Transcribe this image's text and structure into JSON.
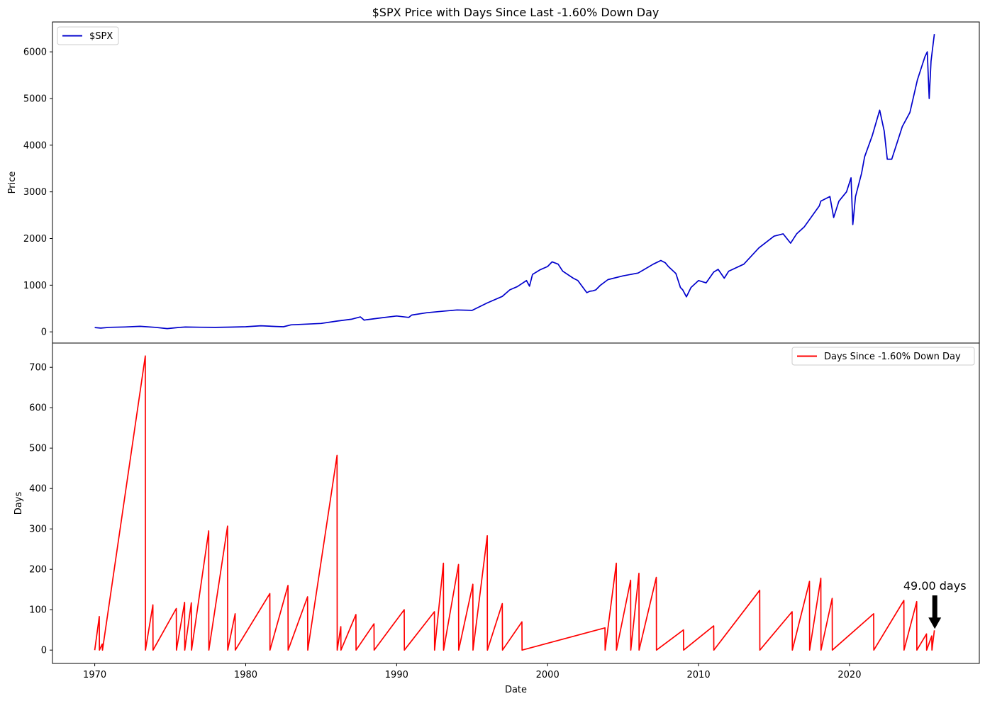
{
  "figure": {
    "title": "$SPX Price with Days Since Last -1.60% Down Day"
  },
  "chart_data": [
    {
      "type": "line",
      "ylabel": "Price",
      "xlabel": "",
      "xlim": [
        1967.2,
        2028.6
      ],
      "ylim": [
        -240,
        6640
      ],
      "yticks": [
        0,
        1000,
        2000,
        3000,
        4000,
        5000,
        6000
      ],
      "grid": false,
      "legend_position": "top-left",
      "series": [
        {
          "name": "$SPX",
          "color": "#0000cc",
          "x": [
            1970.0,
            1970.4,
            1971.0,
            1972.0,
            1973.0,
            1974.0,
            1974.8,
            1975.5,
            1976.0,
            1977.0,
            1978.0,
            1979.0,
            1980.0,
            1981.0,
            1982.0,
            1982.5,
            1983.0,
            1984.0,
            1985.0,
            1986.0,
            1987.0,
            1987.6,
            1987.85,
            1988.0,
            1989.0,
            1990.0,
            1990.8,
            1991.0,
            1992.0,
            1993.0,
            1994.0,
            1995.0,
            1996.0,
            1997.0,
            1997.5,
            1998.0,
            1998.6,
            1998.8,
            1999.0,
            1999.5,
            2000.0,
            2000.3,
            2000.7,
            2001.0,
            2001.7,
            2002.0,
            2002.6,
            2002.8,
            2003.0,
            2003.2,
            2003.5,
            2004.0,
            2005.0,
            2006.0,
            2007.0,
            2007.5,
            2007.8,
            2008.0,
            2008.5,
            2008.8,
            2008.95,
            2009.2,
            2009.5,
            2010.0,
            2010.5,
            2011.0,
            2011.3,
            2011.7,
            2012.0,
            2013.0,
            2014.0,
            2015.0,
            2015.6,
            2016.1,
            2016.5,
            2017.0,
            2018.0,
            2018.1,
            2018.7,
            2018.95,
            2019.3,
            2019.8,
            2020.1,
            2020.22,
            2020.4,
            2020.8,
            2021.0,
            2021.5,
            2022.0,
            2022.3,
            2022.5,
            2022.8,
            2023.0,
            2023.5,
            2024.0,
            2024.5,
            2024.8,
            2025.0,
            2025.15,
            2025.28,
            2025.4,
            2025.55,
            2025.62
          ],
          "y": [
            93,
            80,
            97,
            105,
            118,
            97,
            70,
            92,
            103,
            98,
            95,
            101,
            110,
            130,
            115,
            110,
            150,
            165,
            180,
            230,
            270,
            320,
            250,
            260,
            300,
            340,
            310,
            360,
            410,
            440,
            470,
            460,
            620,
            760,
            900,
            970,
            1100,
            980,
            1230,
            1330,
            1400,
            1500,
            1450,
            1300,
            1150,
            1100,
            840,
            870,
            880,
            900,
            1000,
            1120,
            1200,
            1260,
            1450,
            1530,
            1480,
            1400,
            1250,
            950,
            900,
            750,
            950,
            1100,
            1050,
            1280,
            1340,
            1150,
            1300,
            1450,
            1800,
            2050,
            2100,
            1900,
            2100,
            2250,
            2700,
            2800,
            2900,
            2450,
            2800,
            3000,
            3300,
            2300,
            2900,
            3400,
            3750,
            4200,
            4750,
            4300,
            3700,
            3700,
            3900,
            4400,
            4700,
            5400,
            5700,
            5900,
            6000,
            5000,
            5800,
            6200,
            6380
          ]
        }
      ]
    },
    {
      "type": "line",
      "ylabel": "Days",
      "xlabel": "Date",
      "xlim": [
        1967.2,
        2028.6
      ],
      "xticks": [
        1970,
        1980,
        1990,
        2000,
        2010,
        2020
      ],
      "ylim": [
        -33,
        760
      ],
      "yticks": [
        0,
        100,
        200,
        300,
        400,
        500,
        600,
        700
      ],
      "grid": false,
      "legend_position": "top-right",
      "annotation": {
        "text": "49.00 days",
        "x": 2025.65,
        "y": 49.0
      },
      "series": [
        {
          "name": "Days Since -1.60% Down Day",
          "color": "#ff0000",
          "x": [
            1970.0,
            1970.3,
            1970.31,
            1970.5,
            1970.51,
            1973.35,
            1973.36,
            1973.85,
            1973.86,
            1975.4,
            1975.41,
            1975.95,
            1975.96,
            1976.4,
            1976.41,
            1977.55,
            1977.56,
            1978.8,
            1978.81,
            1979.3,
            1979.31,
            1981.6,
            1981.61,
            1982.8,
            1982.81,
            1984.1,
            1984.11,
            1986.05,
            1986.06,
            1986.3,
            1986.31,
            1987.3,
            1987.31,
            1988.5,
            1988.51,
            1990.5,
            1990.51,
            1992.5,
            1992.51,
            1993.1,
            1993.11,
            1994.1,
            1994.11,
            1995.05,
            1995.06,
            1996.0,
            1996.01,
            1997.0,
            1997.01,
            1998.3,
            1998.31,
            2003.8,
            2003.81,
            2004.55,
            2004.56,
            2005.5,
            2005.51,
            2006.05,
            2006.06,
            2007.2,
            2007.21,
            2009.0,
            2009.01,
            2011.0,
            2011.01,
            2014.05,
            2014.06,
            2016.2,
            2016.21,
            2017.35,
            2017.36,
            2018.1,
            2018.11,
            2018.85,
            2018.86,
            2021.6,
            2021.61,
            2023.6,
            2023.61,
            2024.45,
            2024.46,
            2025.1,
            2025.11,
            2025.45,
            2025.46,
            2025.62
          ],
          "y": [
            0,
            83,
            0,
            15,
            0,
            728,
            0,
            112,
            0,
            103,
            0,
            118,
            0,
            117,
            0,
            295,
            0,
            307,
            0,
            90,
            0,
            140,
            0,
            160,
            0,
            132,
            0,
            482,
            0,
            58,
            0,
            88,
            0,
            65,
            0,
            100,
            0,
            95,
            0,
            215,
            0,
            212,
            0,
            163,
            0,
            283,
            0,
            115,
            0,
            70,
            0,
            55,
            0,
            215,
            0,
            173,
            0,
            190,
            0,
            180,
            0,
            50,
            0,
            60,
            0,
            148,
            0,
            95,
            0,
            170,
            0,
            178,
            0,
            128,
            0,
            90,
            0,
            123,
            0,
            120,
            0,
            40,
            0,
            35,
            0,
            49
          ]
        }
      ]
    }
  ]
}
